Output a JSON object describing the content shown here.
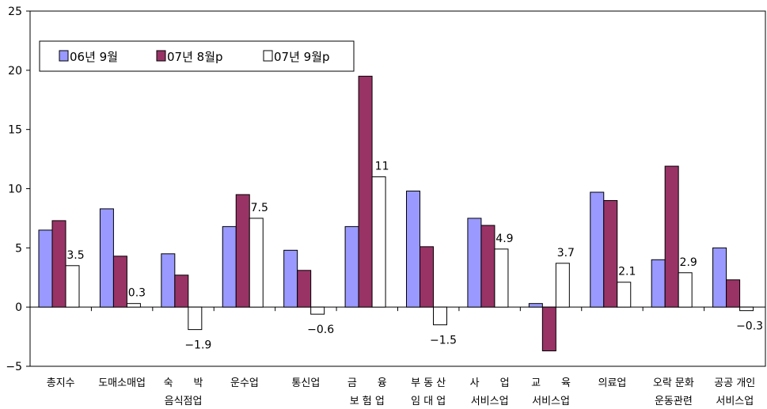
{
  "chart_data": {
    "type": "bar",
    "title": "",
    "xlabel": "",
    "ylabel": "",
    "ylim": [
      -5,
      25
    ],
    "yticks": [
      25,
      20,
      15,
      10,
      5,
      0,
      -5
    ],
    "categories": [
      [
        "총지수"
      ],
      [
        "도매소매업"
      ],
      [
        "숙　　박",
        "음식점업"
      ],
      [
        "운수업"
      ],
      [
        "통신업"
      ],
      [
        "금　　융",
        "보 험 업"
      ],
      [
        "부 동 산",
        "임 대 업"
      ],
      [
        "사　　업",
        "서비스업"
      ],
      [
        "교　　육",
        "서비스업"
      ],
      [
        "의료업"
      ],
      [
        "오락 문화",
        "운동관련"
      ],
      [
        "공공 개인",
        "서비스업"
      ]
    ],
    "series": [
      {
        "name": "06년 9월",
        "color": "#9999ff",
        "values": [
          6.5,
          8.3,
          4.5,
          6.8,
          4.8,
          6.8,
          9.8,
          7.5,
          0.3,
          9.7,
          4.0,
          5.0
        ]
      },
      {
        "name": "07년 8월p",
        "color": "#993366",
        "values": [
          7.3,
          4.3,
          2.7,
          9.5,
          3.1,
          19.5,
          5.1,
          6.9,
          -3.7,
          9.0,
          11.9,
          2.3
        ]
      },
      {
        "name": "07년 9월p",
        "color": "#ffffff",
        "values": [
          3.5,
          0.3,
          -1.9,
          7.5,
          -0.6,
          11,
          -1.5,
          4.9,
          3.7,
          2.1,
          2.9,
          -0.3
        ]
      }
    ],
    "data_labels": [
      "3.5",
      "0.3",
      "−1.9",
      "7.5",
      "−0.6",
      "11",
      "−1.5",
      "4.9",
      "3.7",
      "2.1",
      "2.9",
      "−0.3"
    ],
    "legend": {
      "placement": "top-left",
      "border": true
    },
    "grid": false
  }
}
